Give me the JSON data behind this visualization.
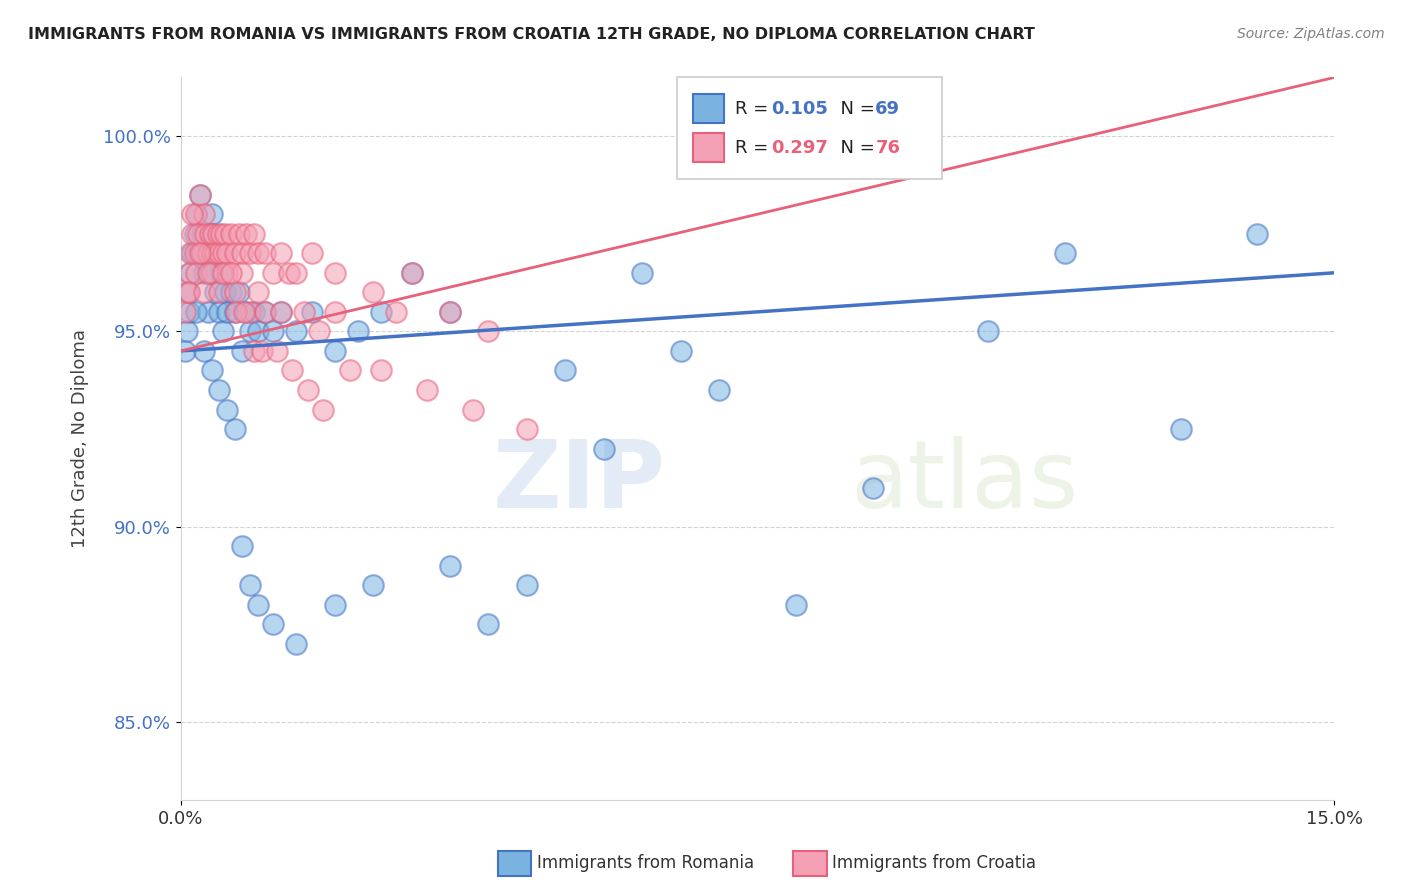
{
  "title": "IMMIGRANTS FROM ROMANIA VS IMMIGRANTS FROM CROATIA 12TH GRADE, NO DIPLOMA CORRELATION CHART",
  "source": "Source: ZipAtlas.com",
  "ylabel": "12th Grade, No Diploma",
  "xlim": [
    0.0,
    15.0
  ],
  "ylim": [
    83.0,
    101.5
  ],
  "x_tick_labels": [
    "0.0%",
    "15.0%"
  ],
  "y_ticks": [
    85.0,
    90.0,
    95.0,
    100.0
  ],
  "y_tick_labels": [
    "85.0%",
    "90.0%",
    "95.0%",
    "100.0%"
  ],
  "legend_r1": "0.105",
  "legend_n1": "69",
  "legend_r2": "0.297",
  "legend_n2": "76",
  "color_romania": "#7ab3e0",
  "color_croatia": "#f4a0b5",
  "color_romania_line": "#4472c4",
  "color_croatia_line": "#e8607a",
  "watermark_zip": "ZIP",
  "watermark_atlas": "atlas",
  "legend_label1": "Immigrants from Romania",
  "legend_label2": "Immigrants from Croatia",
  "romania_x": [
    0.05,
    0.08,
    0.1,
    0.12,
    0.15,
    0.18,
    0.2,
    0.22,
    0.25,
    0.28,
    0.3,
    0.32,
    0.35,
    0.38,
    0.4,
    0.42,
    0.45,
    0.48,
    0.5,
    0.52,
    0.55,
    0.58,
    0.6,
    0.65,
    0.7,
    0.75,
    0.8,
    0.85,
    0.9,
    0.95,
    1.0,
    1.1,
    1.2,
    1.3,
    1.5,
    1.7,
    2.0,
    2.3,
    2.6,
    3.0,
    3.5,
    4.0,
    4.5,
    5.0,
    6.0,
    7.0,
    8.0,
    9.0,
    11.5,
    14.0,
    0.1,
    0.2,
    0.3,
    0.4,
    0.5,
    0.6,
    0.7,
    0.8,
    0.9,
    1.0,
    1.2,
    1.5,
    2.0,
    2.5,
    3.5,
    5.5,
    6.5,
    10.5,
    13.0
  ],
  "romania_y": [
    94.5,
    95.0,
    95.5,
    96.5,
    97.0,
    97.5,
    98.0,
    97.0,
    98.5,
    97.5,
    96.5,
    97.0,
    95.5,
    96.5,
    98.0,
    97.5,
    96.0,
    97.0,
    95.5,
    96.5,
    95.0,
    96.0,
    95.5,
    96.0,
    95.5,
    96.0,
    94.5,
    95.5,
    95.0,
    95.5,
    95.0,
    95.5,
    95.0,
    95.5,
    95.0,
    95.5,
    94.5,
    95.0,
    95.5,
    96.5,
    95.5,
    87.5,
    88.5,
    94.0,
    96.5,
    93.5,
    88.0,
    91.0,
    97.0,
    97.5,
    96.0,
    95.5,
    94.5,
    94.0,
    93.5,
    93.0,
    92.5,
    89.5,
    88.5,
    88.0,
    87.5,
    87.0,
    88.0,
    88.5,
    89.0,
    92.0,
    94.5,
    95.0,
    92.5
  ],
  "croatia_x": [
    0.05,
    0.08,
    0.1,
    0.12,
    0.15,
    0.18,
    0.2,
    0.22,
    0.25,
    0.28,
    0.3,
    0.32,
    0.35,
    0.38,
    0.4,
    0.42,
    0.45,
    0.48,
    0.5,
    0.52,
    0.55,
    0.58,
    0.6,
    0.65,
    0.7,
    0.75,
    0.8,
    0.85,
    0.9,
    0.95,
    1.0,
    1.1,
    1.2,
    1.3,
    1.4,
    1.5,
    1.7,
    2.0,
    2.5,
    3.0,
    0.1,
    0.2,
    0.3,
    0.4,
    0.5,
    0.6,
    0.7,
    0.8,
    0.9,
    1.0,
    1.1,
    1.3,
    1.6,
    2.0,
    2.8,
    3.5,
    4.0,
    1.8,
    0.15,
    0.25,
    0.35,
    0.55,
    0.65,
    0.72,
    0.82,
    0.95,
    1.05,
    1.25,
    1.45,
    1.65,
    1.85,
    2.2,
    2.6,
    3.2,
    3.8,
    4.5
  ],
  "croatia_y": [
    95.5,
    96.0,
    96.5,
    97.0,
    97.5,
    97.0,
    98.0,
    97.5,
    98.5,
    97.0,
    98.0,
    97.5,
    97.0,
    97.5,
    97.0,
    97.5,
    97.0,
    97.5,
    97.0,
    97.5,
    97.0,
    97.5,
    97.0,
    97.5,
    97.0,
    97.5,
    97.0,
    97.5,
    97.0,
    97.5,
    97.0,
    97.0,
    96.5,
    97.0,
    96.5,
    96.5,
    97.0,
    96.5,
    96.0,
    96.5,
    96.0,
    96.5,
    96.0,
    96.5,
    96.0,
    96.5,
    96.0,
    96.5,
    95.5,
    96.0,
    95.5,
    95.5,
    95.5,
    95.5,
    95.5,
    95.5,
    95.0,
    95.0,
    98.0,
    97.0,
    96.5,
    96.5,
    96.5,
    95.5,
    95.5,
    94.5,
    94.5,
    94.5,
    94.0,
    93.5,
    93.0,
    94.0,
    94.0,
    93.5,
    93.0,
    92.5
  ]
}
